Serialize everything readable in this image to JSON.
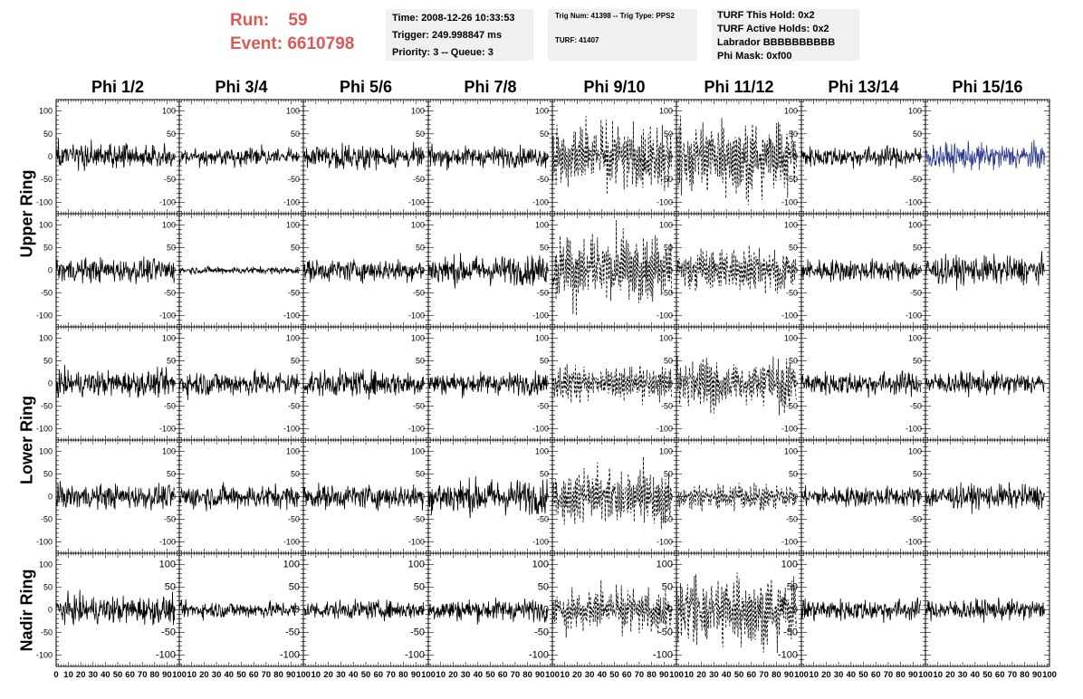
{
  "header": {
    "run_label": "Run:",
    "run_value": "59",
    "event_label": "Event:",
    "event_value": "6610798",
    "time": "Time: 2008-12-26 10:33:53",
    "trigger": "Trigger: 249.998847 ms",
    "priority": "Priority: 3 -- Queue: 3",
    "trig_num": "Trig Num: 41398 -- Trig Type: PPS2",
    "turf": "TURF: 41407",
    "turf_this_hold": "TURF This Hold: 0x2",
    "turf_active_holds": "TURF Active Holds: 0x2",
    "labrador": "Labrador BBBBBBBBBB",
    "phi_mask": "Phi Mask: 0xf00"
  },
  "colors": {
    "header_red": "#d95a55",
    "info_bg": "#f0f0f0",
    "trace_default": "#000000",
    "trace_highlight": "#2b3a8f"
  },
  "chart_data": {
    "type": "line",
    "grid": false,
    "columns": [
      "Phi 1/2",
      "Phi 3/4",
      "Phi 5/6",
      "Phi 7/8",
      "Phi 9/10",
      "Phi 11/12",
      "Phi 13/14",
      "Phi 15/16"
    ],
    "rows": [
      "Upper Ring",
      "Upper Ring",
      "Lower Ring",
      "Lower Ring",
      "Nadir Ring"
    ],
    "row_labels": [
      {
        "label": "Upper Ring",
        "rows": [
          0,
          1
        ]
      },
      {
        "label": "Lower Ring",
        "rows": [
          2,
          3
        ]
      },
      {
        "label": "Nadir Ring",
        "rows": [
          4
        ]
      }
    ],
    "xlim": [
      0,
      100
    ],
    "ylim": [
      -125,
      125
    ],
    "x_ticks": [
      0,
      10,
      20,
      30,
      40,
      50,
      60,
      70,
      80,
      90,
      100
    ],
    "y_ticks": [
      -100,
      -50,
      0,
      50,
      100
    ],
    "trace_x_range": [
      0,
      96
    ],
    "trace_points": 260,
    "panels": [
      [
        {
          "amplitude": 14,
          "style": "solid"
        },
        {
          "amplitude": 9,
          "style": "solid"
        },
        {
          "amplitude": 12,
          "style": "solid"
        },
        {
          "amplitude": 11,
          "style": "solid"
        },
        {
          "amplitude": 42,
          "style": "dashed"
        },
        {
          "amplitude": 48,
          "style": "dashed"
        },
        {
          "amplitude": 11,
          "style": "solid"
        },
        {
          "amplitude": 14,
          "style": "solid",
          "color": "highlight"
        }
      ],
      [
        {
          "amplitude": 13,
          "style": "solid"
        },
        {
          "amplitude": 4,
          "style": "solid"
        },
        {
          "amplitude": 12,
          "style": "solid"
        },
        {
          "amplitude": 16,
          "style": "solid"
        },
        {
          "amplitude": 45,
          "style": "dashed"
        },
        {
          "amplitude": 28,
          "style": "dashed"
        },
        {
          "amplitude": 12,
          "style": "solid"
        },
        {
          "amplitude": 15,
          "style": "solid"
        }
      ],
      [
        {
          "amplitude": 14,
          "style": "solid"
        },
        {
          "amplitude": 14,
          "style": "solid"
        },
        {
          "amplitude": 14,
          "style": "solid"
        },
        {
          "amplitude": 12,
          "style": "solid"
        },
        {
          "amplitude": 22,
          "style": "dashed"
        },
        {
          "amplitude": 32,
          "style": "dashed"
        },
        {
          "amplitude": 13,
          "style": "solid"
        },
        {
          "amplitude": 12,
          "style": "solid"
        }
      ],
      [
        {
          "amplitude": 13,
          "style": "solid"
        },
        {
          "amplitude": 13,
          "style": "solid"
        },
        {
          "amplitude": 13,
          "style": "solid"
        },
        {
          "amplitude": 19,
          "style": "solid"
        },
        {
          "amplitude": 36,
          "style": "dashed"
        },
        {
          "amplitude": 18,
          "style": "dashed"
        },
        {
          "amplitude": 11,
          "style": "solid"
        },
        {
          "amplitude": 13,
          "style": "solid"
        }
      ],
      [
        {
          "amplitude": 15,
          "style": "solid"
        },
        {
          "amplitude": 9,
          "style": "solid"
        },
        {
          "amplitude": 10,
          "style": "solid"
        },
        {
          "amplitude": 12,
          "style": "solid"
        },
        {
          "amplitude": 28,
          "style": "dashed"
        },
        {
          "amplitude": 45,
          "style": "dashed"
        },
        {
          "amplitude": 12,
          "style": "solid"
        },
        {
          "amplitude": 11,
          "style": "solid"
        }
      ]
    ]
  }
}
